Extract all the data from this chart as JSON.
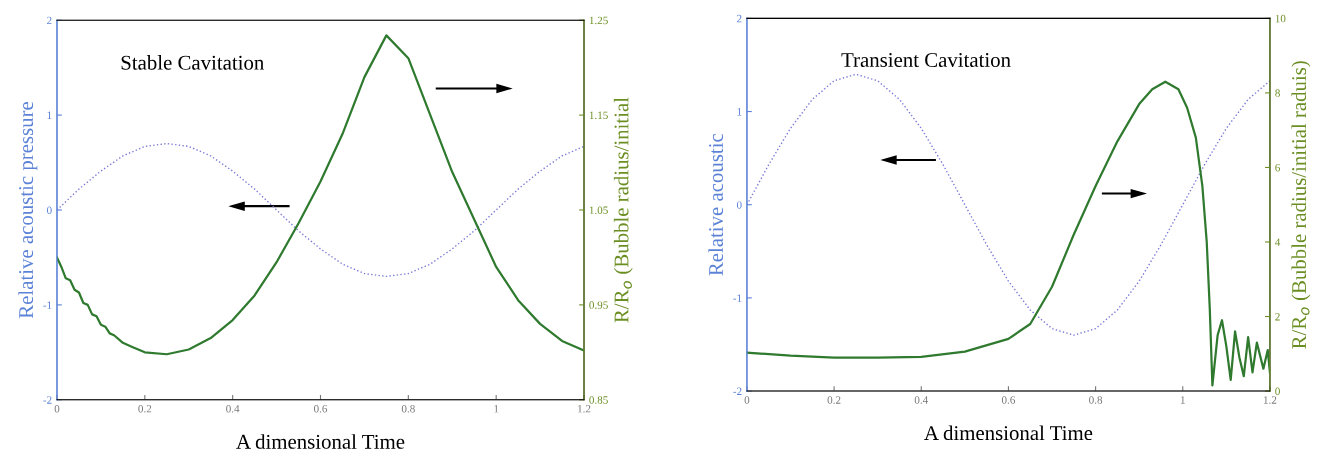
{
  "chart_data": [
    {
      "type": "line",
      "title": "Stable Cavitation",
      "xlabel": "A dimensional Time",
      "ylabel": "Relative acoustic pressure",
      "y2label": "R/R$_{o}$ (Bubble radius/initial",
      "xlim": [
        0,
        1.2
      ],
      "xticks": [
        0,
        0.2,
        0.4,
        0.6,
        0.8,
        1,
        1.2
      ],
      "ylim": [
        -2,
        2
      ],
      "yticks": [
        -2,
        -1,
        0,
        1,
        2
      ],
      "y2lim": [
        0.85,
        1.25
      ],
      "y2ticks": [
        0.85,
        0.95,
        1.05,
        1.15,
        1.25
      ],
      "grid": false,
      "legend": false,
      "series": [
        {
          "color": "#7a7ad8",
          "line_style": "dotted",
          "x": [
            0,
            0.05,
            0.1,
            0.15,
            0.2,
            0.25,
            0.3,
            0.35,
            0.4,
            0.45,
            0.5,
            0.55,
            0.6,
            0.65,
            0.7,
            0.75,
            0.8,
            0.85,
            0.9,
            0.95,
            1.0,
            1.05,
            1.1,
            1.15,
            1.2
          ],
          "values": [
            0,
            0.22,
            0.41,
            0.57,
            0.67,
            0.7,
            0.67,
            0.57,
            0.41,
            0.22,
            0,
            -0.22,
            -0.41,
            -0.57,
            -0.67,
            -0.7,
            -0.67,
            -0.57,
            -0.41,
            -0.22,
            0,
            0.22,
            0.41,
            0.57,
            0.67
          ]
        },
        {
          "color": "#2f7a2f",
          "line_style": "solid",
          "axis": "y2",
          "x": [
            0,
            0.01,
            0.02,
            0.03,
            0.04,
            0.05,
            0.06,
            0.07,
            0.08,
            0.09,
            0.1,
            0.11,
            0.12,
            0.13,
            0.15,
            0.17,
            0.2,
            0.25,
            0.3,
            0.35,
            0.4,
            0.45,
            0.5,
            0.55,
            0.6,
            0.65,
            0.7,
            0.75,
            0.8,
            0.85,
            0.9,
            0.95,
            1.0,
            1.05,
            1.1,
            1.15,
            1.2
          ],
          "values": [
            1.0,
            0.99,
            0.978,
            0.976,
            0.966,
            0.963,
            0.952,
            0.95,
            0.94,
            0.938,
            0.929,
            0.927,
            0.92,
            0.918,
            0.91,
            0.906,
            0.9,
            0.898,
            0.903,
            0.915,
            0.934,
            0.96,
            0.995,
            1.036,
            1.08,
            1.13,
            1.19,
            1.234,
            1.21,
            1.15,
            1.09,
            1.04,
            0.99,
            0.955,
            0.93,
            0.912,
            0.902
          ]
        }
      ]
    },
    {
      "type": "line",
      "title": "Transient Cavitation",
      "xlabel": "A dimensional Time",
      "ylabel": "Relative acoustic",
      "y2label": "R/R$_{o}$ (Bubble radius/initial raduis)",
      "xlim": [
        0,
        1.2
      ],
      "xticks": [
        0,
        0.2,
        0.4,
        0.6,
        0.8,
        1,
        1.2
      ],
      "ylim": [
        -2,
        2
      ],
      "yticks": [
        -2,
        -1,
        0,
        1,
        2
      ],
      "y2lim": [
        0,
        10
      ],
      "y2ticks": [
        0,
        2,
        4,
        6,
        8,
        10
      ],
      "grid": false,
      "legend": false,
      "series": [
        {
          "color": "#7a7ad8",
          "line_style": "dotted",
          "x": [
            0,
            0.05,
            0.1,
            0.15,
            0.2,
            0.25,
            0.3,
            0.35,
            0.4,
            0.45,
            0.5,
            0.55,
            0.6,
            0.65,
            0.7,
            0.75,
            0.8,
            0.85,
            0.9,
            0.95,
            1.0,
            1.05,
            1.1,
            1.15,
            1.2
          ],
          "values": [
            0,
            0.43,
            0.82,
            1.13,
            1.33,
            1.4,
            1.33,
            1.13,
            0.82,
            0.43,
            0,
            -0.43,
            -0.82,
            -1.13,
            -1.33,
            -1.4,
            -1.33,
            -1.13,
            -0.82,
            -0.43,
            0,
            0.43,
            0.82,
            1.13,
            1.33
          ]
        },
        {
          "color": "#2f7a2f",
          "line_style": "solid",
          "axis": "y2",
          "x": [
            0,
            0.1,
            0.2,
            0.3,
            0.4,
            0.5,
            0.6,
            0.65,
            0.7,
            0.75,
            0.8,
            0.85,
            0.9,
            0.93,
            0.96,
            0.99,
            1.01,
            1.03,
            1.045,
            1.055,
            1.062,
            1.068,
            1.08,
            1.09,
            1.1,
            1.11,
            1.12,
            1.13,
            1.14,
            1.15,
            1.16,
            1.17,
            1.185,
            1.195,
            1.2
          ],
          "values": [
            1.03,
            0.95,
            0.9,
            0.9,
            0.92,
            1.06,
            1.4,
            1.8,
            2.8,
            4.2,
            5.5,
            6.7,
            7.7,
            8.1,
            8.3,
            8.1,
            7.6,
            6.8,
            5.5,
            4.0,
            2.2,
            0.15,
            1.5,
            1.9,
            1.2,
            0.3,
            1.6,
            0.9,
            0.4,
            1.45,
            0.5,
            1.3,
            0.6,
            1.1,
            0.5
          ]
        }
      ]
    }
  ]
}
